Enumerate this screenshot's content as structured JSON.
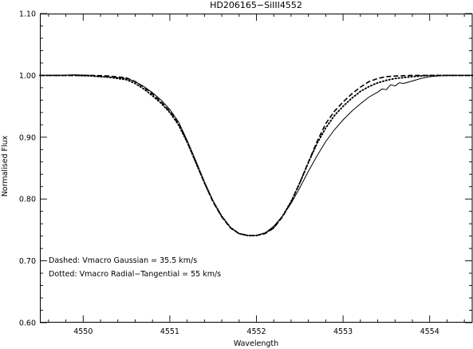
{
  "chart_data": {
    "type": "line",
    "title": "HD206165−SiIII4552",
    "xlabel": "Wavelength",
    "ylabel": "Normalised Flux",
    "xlim": [
      4549.5,
      4554.5
    ],
    "ylim": [
      0.6,
      1.1
    ],
    "x_ticks": [
      {
        "value": 4550,
        "label": "4550"
      },
      {
        "value": 4551,
        "label": "4551"
      },
      {
        "value": 4552,
        "label": "4552"
      },
      {
        "value": 4553,
        "label": "4553"
      },
      {
        "value": 4554,
        "label": "4554"
      }
    ],
    "x_minor_step": 0.2,
    "y_ticks": [
      {
        "value": 0.6,
        "label": "0.60"
      },
      {
        "value": 0.7,
        "label": "0.70"
      },
      {
        "value": 0.8,
        "label": "0.80"
      },
      {
        "value": 0.9,
        "label": "0.90"
      },
      {
        "value": 1.0,
        "label": "1.00"
      },
      {
        "value": 1.1,
        "label": "1.10"
      }
    ],
    "y_minor_step": 0.02,
    "grid": false,
    "annotations": [
      "Dashed: Vmacro Gaussian = 35.5 km/s",
      "Dotted: Vmacro Radial−Tangential = 55 km/s"
    ],
    "series": [
      {
        "style": "solid",
        "x": [
          4549.5,
          4549.7,
          4549.9,
          4550.1,
          4550.2,
          4550.35,
          4550.5,
          4550.6,
          4550.7,
          4550.8,
          4550.9,
          4551.0,
          4551.1,
          4551.2,
          4551.3,
          4551.4,
          4551.5,
          4551.6,
          4551.7,
          4551.8,
          4551.9,
          4552.0,
          4552.1,
          4552.2,
          4552.3,
          4552.4,
          4552.5,
          4552.6,
          4552.7,
          4552.8,
          4552.9,
          4553.0,
          4553.1,
          4553.2,
          4553.3,
          4553.4,
          4553.45,
          4553.5,
          4553.55,
          4553.6,
          4553.65,
          4553.7,
          4553.8,
          4553.9,
          4554.0,
          4554.1,
          4554.2,
          4554.3,
          4554.4,
          4554.5
        ],
        "y": [
          1.0,
          1.0,
          1.001,
          1.0,
          0.998,
          0.997,
          0.995,
          0.99,
          0.982,
          0.972,
          0.96,
          0.945,
          0.925,
          0.895,
          0.862,
          0.828,
          0.797,
          0.772,
          0.754,
          0.744,
          0.741,
          0.741,
          0.745,
          0.756,
          0.772,
          0.793,
          0.818,
          0.845,
          0.87,
          0.893,
          0.912,
          0.928,
          0.942,
          0.954,
          0.965,
          0.973,
          0.978,
          0.977,
          0.985,
          0.983,
          0.988,
          0.987,
          0.991,
          0.995,
          0.998,
          0.999,
          1.0,
          1.0,
          1.0,
          1.0
        ]
      },
      {
        "style": "dashed",
        "x": [
          4549.5,
          4549.7,
          4549.9,
          4550.1,
          4550.3,
          4550.5,
          4550.6,
          4550.7,
          4550.8,
          4550.9,
          4551.0,
          4551.1,
          4551.2,
          4551.3,
          4551.4,
          4551.5,
          4551.6,
          4551.7,
          4551.8,
          4551.9,
          4552.0,
          4552.1,
          4552.2,
          4552.3,
          4552.4,
          4552.5,
          4552.6,
          4552.7,
          4552.8,
          4552.9,
          4553.0,
          4553.1,
          4553.2,
          4553.3,
          4553.4,
          4553.5,
          4553.6,
          4553.8,
          4554.0,
          4554.2,
          4554.5
        ],
        "y": [
          1.0,
          1.0,
          1.0,
          1.0,
          0.999,
          0.996,
          0.99,
          0.981,
          0.97,
          0.957,
          0.942,
          0.922,
          0.893,
          0.86,
          0.826,
          0.795,
          0.771,
          0.753,
          0.744,
          0.741,
          0.741,
          0.744,
          0.753,
          0.771,
          0.795,
          0.826,
          0.86,
          0.893,
          0.922,
          0.942,
          0.957,
          0.97,
          0.981,
          0.99,
          0.995,
          0.998,
          0.999,
          1.0,
          1.0,
          1.0,
          1.0
        ]
      },
      {
        "style": "dotted",
        "x": [
          4549.5,
          4549.7,
          4549.9,
          4550.1,
          4550.3,
          4550.5,
          4550.6,
          4550.7,
          4550.8,
          4550.9,
          4551.0,
          4551.1,
          4551.2,
          4551.3,
          4551.4,
          4551.5,
          4551.6,
          4551.7,
          4551.8,
          4551.9,
          4552.0,
          4552.1,
          4552.2,
          4552.3,
          4552.4,
          4552.5,
          4552.6,
          4552.7,
          4552.8,
          4552.9,
          4553.0,
          4553.1,
          4553.2,
          4553.3,
          4553.4,
          4553.5,
          4553.6,
          4553.8,
          4554.0,
          4554.2,
          4554.5
        ],
        "y": [
          1.0,
          1.0,
          1.0,
          0.999,
          0.997,
          0.993,
          0.987,
          0.978,
          0.967,
          0.955,
          0.94,
          0.92,
          0.892,
          0.859,
          0.826,
          0.796,
          0.772,
          0.754,
          0.744,
          0.741,
          0.741,
          0.745,
          0.754,
          0.772,
          0.796,
          0.826,
          0.859,
          0.89,
          0.915,
          0.935,
          0.95,
          0.963,
          0.974,
          0.982,
          0.988,
          0.992,
          0.995,
          0.998,
          1.0,
          1.0,
          1.0
        ]
      }
    ]
  }
}
